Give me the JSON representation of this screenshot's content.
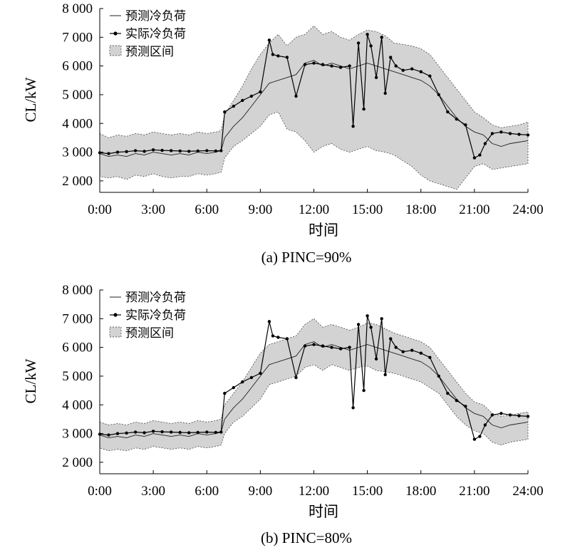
{
  "chart_data": [
    {
      "type": "line",
      "title": "(a) PINC=90%",
      "xlabel": "时间",
      "ylabel": "CL/kW",
      "x_ticks": [
        "0:00",
        "3:00",
        "6:00",
        "9:00",
        "12:00",
        "15:00",
        "18:00",
        "21:00",
        "24:00"
      ],
      "y_ticks": [
        "2 000",
        "3 000",
        "4 000",
        "5 000",
        "6 000",
        "7 000",
        "8 000"
      ],
      "xlim": [
        0,
        24
      ],
      "ylim": [
        1600,
        8000
      ],
      "grid": false,
      "legend_position": "top-left",
      "legend": [
        "预测冷负荷",
        "实际冷负荷",
        "预测区间"
      ],
      "series": [
        {
          "name": "预测冷负荷",
          "x": [
            0,
            0.5,
            1,
            1.5,
            2,
            2.5,
            3,
            3.5,
            4,
            4.5,
            5,
            5.5,
            6,
            6.5,
            6.8,
            7,
            7.5,
            8,
            8.5,
            9,
            9.5,
            10,
            10.5,
            11,
            11.5,
            12,
            12.5,
            13,
            13.5,
            14,
            14.5,
            15,
            15.5,
            16,
            16.5,
            17,
            17.5,
            18,
            18.5,
            19,
            19.5,
            20,
            20.5,
            21,
            21.5,
            22,
            22.5,
            23,
            23.5,
            24
          ],
          "y": [
            2950,
            2850,
            2900,
            2850,
            2950,
            2900,
            3000,
            2950,
            2900,
            2950,
            2900,
            3000,
            2950,
            3000,
            3050,
            3500,
            3900,
            4200,
            4600,
            5000,
            5400,
            5500,
            5600,
            5700,
            6100,
            6200,
            6000,
            6100,
            6000,
            5900,
            6000,
            6100,
            6000,
            5900,
            5800,
            5700,
            5600,
            5500,
            5300,
            5000,
            4600,
            4200,
            3900,
            3700,
            3600,
            3300,
            3200,
            3300,
            3350,
            3400
          ]
        },
        {
          "name": "实际冷负荷",
          "x": [
            0,
            0.5,
            1,
            1.5,
            2,
            2.5,
            3,
            3.5,
            4,
            4.5,
            5,
            5.5,
            6,
            6.5,
            6.8,
            7,
            7.5,
            8,
            8.5,
            9,
            9.5,
            9.7,
            10,
            10.5,
            11,
            11.5,
            12,
            12.5,
            13,
            13.5,
            14,
            14.2,
            14.5,
            14.8,
            15,
            15.2,
            15.5,
            15.8,
            16,
            16.3,
            16.6,
            17,
            17.5,
            18,
            18.5,
            19,
            19.5,
            20,
            20.5,
            21,
            21.3,
            21.6,
            22,
            22.5,
            23,
            23.5,
            24
          ],
          "y": [
            2980,
            2950,
            3000,
            3020,
            3050,
            3030,
            3080,
            3060,
            3050,
            3040,
            3030,
            3040,
            3050,
            3040,
            3050,
            4400,
            4600,
            4800,
            4950,
            5100,
            6900,
            6400,
            6350,
            6300,
            4950,
            6050,
            6100,
            6050,
            6000,
            5950,
            6000,
            3900,
            6800,
            4500,
            7100,
            6700,
            5600,
            7000,
            5050,
            6300,
            6000,
            5850,
            5900,
            5800,
            5650,
            5000,
            4400,
            4150,
            3950,
            2800,
            2900,
            3300,
            3650,
            3700,
            3650,
            3620,
            3600
          ]
        },
        {
          "name": "预测区间",
          "x": [
            0,
            0.5,
            1,
            1.5,
            2,
            2.5,
            3,
            3.5,
            4,
            4.5,
            5,
            5.5,
            6,
            6.5,
            6.8,
            7,
            7.5,
            8,
            8.5,
            9,
            9.5,
            10,
            10.5,
            11,
            11.5,
            12,
            12.5,
            13,
            13.5,
            14,
            14.5,
            15,
            15.5,
            16,
            16.5,
            17,
            17.5,
            18,
            18.5,
            19,
            19.5,
            20,
            20.5,
            21,
            21.5,
            22,
            22.5,
            23,
            23.5,
            24
          ],
          "upper": [
            3650,
            3500,
            3600,
            3550,
            3650,
            3600,
            3700,
            3650,
            3600,
            3650,
            3600,
            3700,
            3650,
            3700,
            3750,
            4300,
            4800,
            5300,
            5900,
            6400,
            6800,
            7100,
            6700,
            7000,
            7100,
            7400,
            7100,
            7200,
            7000,
            6900,
            7100,
            7250,
            7200,
            7050,
            6800,
            6750,
            6700,
            6600,
            6400,
            6000,
            5600,
            5200,
            4800,
            4400,
            4200,
            3950,
            3850,
            3900,
            3950,
            4050
          ],
          "lower": [
            2150,
            2100,
            2150,
            2050,
            2200,
            2150,
            2250,
            2150,
            2100,
            2150,
            2150,
            2250,
            2200,
            2250,
            2300,
            2800,
            3200,
            3400,
            3650,
            3900,
            4300,
            4400,
            3800,
            3700,
            3400,
            3000,
            3200,
            3300,
            3100,
            3000,
            3100,
            3200,
            3050,
            3000,
            2900,
            2700,
            2500,
            2200,
            2000,
            1900,
            1800,
            1700,
            2100,
            2500,
            2600,
            2400,
            2450,
            2500,
            2550,
            2600
          ]
        }
      ]
    },
    {
      "type": "line",
      "title": "(b) PINC=80%",
      "xlabel": "时间",
      "ylabel": "CL/kW",
      "x_ticks": [
        "0:00",
        "3:00",
        "6:00",
        "9:00",
        "12:00",
        "15:00",
        "18:00",
        "21:00",
        "24:00"
      ],
      "y_ticks": [
        "2 000",
        "3 000",
        "4 000",
        "5 000",
        "6 000",
        "7 000",
        "8 000"
      ],
      "xlim": [
        0,
        24
      ],
      "ylim": [
        1600,
        8000
      ],
      "grid": false,
      "legend_position": "top-left",
      "legend": [
        "预测冷负荷",
        "实际冷负荷",
        "预测区间"
      ],
      "series": [
        {
          "name": "预测冷负荷",
          "x": [
            0,
            0.5,
            1,
            1.5,
            2,
            2.5,
            3,
            3.5,
            4,
            4.5,
            5,
            5.5,
            6,
            6.5,
            6.8,
            7,
            7.5,
            8,
            8.5,
            9,
            9.5,
            10,
            10.5,
            11,
            11.5,
            12,
            12.5,
            13,
            13.5,
            14,
            14.5,
            15,
            15.5,
            16,
            16.5,
            17,
            17.5,
            18,
            18.5,
            19,
            19.5,
            20,
            20.5,
            21,
            21.5,
            22,
            22.5,
            23,
            23.5,
            24
          ],
          "y": [
            2950,
            2850,
            2900,
            2850,
            2950,
            2900,
            3000,
            2950,
            2900,
            2950,
            2900,
            3000,
            2950,
            3000,
            3050,
            3500,
            3900,
            4200,
            4600,
            5000,
            5400,
            5500,
            5600,
            5700,
            6100,
            6200,
            6000,
            6100,
            6000,
            5900,
            6000,
            6100,
            6000,
            5900,
            5800,
            5700,
            5600,
            5500,
            5300,
            5000,
            4600,
            4200,
            3900,
            3700,
            3600,
            3300,
            3200,
            3300,
            3350,
            3400
          ]
        },
        {
          "name": "实际冷负荷",
          "x": [
            0,
            0.5,
            1,
            1.5,
            2,
            2.5,
            3,
            3.5,
            4,
            4.5,
            5,
            5.5,
            6,
            6.5,
            6.8,
            7,
            7.5,
            8,
            8.5,
            9,
            9.5,
            9.7,
            10,
            10.5,
            11,
            11.5,
            12,
            12.5,
            13,
            13.5,
            14,
            14.2,
            14.5,
            14.8,
            15,
            15.2,
            15.5,
            15.8,
            16,
            16.3,
            16.6,
            17,
            17.5,
            18,
            18.5,
            19,
            19.5,
            20,
            20.5,
            21,
            21.3,
            21.6,
            22,
            22.5,
            23,
            23.5,
            24
          ],
          "y": [
            2980,
            2950,
            3000,
            3020,
            3050,
            3030,
            3080,
            3060,
            3050,
            3040,
            3030,
            3040,
            3050,
            3040,
            3050,
            4400,
            4600,
            4800,
            4950,
            5100,
            6900,
            6400,
            6350,
            6300,
            4950,
            6050,
            6100,
            6050,
            6000,
            5950,
            6000,
            3900,
            6800,
            4500,
            7100,
            6700,
            5600,
            7000,
            5050,
            6300,
            6000,
            5850,
            5900,
            5800,
            5650,
            5000,
            4400,
            4150,
            3950,
            2800,
            2900,
            3300,
            3650,
            3700,
            3650,
            3620,
            3600
          ]
        },
        {
          "name": "预测区间",
          "x": [
            0,
            0.5,
            1,
            1.5,
            2,
            2.5,
            3,
            3.5,
            4,
            4.5,
            5,
            5.5,
            6,
            6.5,
            6.8,
            7,
            7.5,
            8,
            8.5,
            9,
            9.5,
            10,
            10.5,
            11,
            11.5,
            12,
            12.5,
            13,
            13.5,
            14,
            14.5,
            15,
            15.5,
            16,
            16.5,
            17,
            17.5,
            18,
            18.5,
            19,
            19.5,
            20,
            20.5,
            21,
            21.5,
            22,
            22.5,
            23,
            23.5,
            24
          ],
          "upper": [
            3400,
            3300,
            3350,
            3300,
            3400,
            3350,
            3450,
            3400,
            3350,
            3400,
            3350,
            3450,
            3400,
            3450,
            3500,
            4000,
            4400,
            4800,
            5300,
            5800,
            6100,
            6200,
            6300,
            6400,
            6800,
            7000,
            6700,
            6800,
            6700,
            6600,
            6700,
            6850,
            6800,
            6650,
            6500,
            6400,
            6300,
            6200,
            6000,
            5600,
            5200,
            4800,
            4400,
            4100,
            4000,
            3700,
            3600,
            3650,
            3700,
            3750
          ],
          "lower": [
            2500,
            2400,
            2450,
            2400,
            2500,
            2450,
            2550,
            2500,
            2450,
            2500,
            2450,
            2550,
            2500,
            2550,
            2600,
            3000,
            3400,
            3600,
            3900,
            4200,
            4700,
            4800,
            4900,
            5000,
            5300,
            5400,
            5200,
            5400,
            5300,
            5200,
            5300,
            5350,
            5200,
            5150,
            5100,
            5000,
            4900,
            4800,
            4600,
            4400,
            4000,
            3600,
            3300,
            3100,
            3000,
            2700,
            2600,
            2700,
            2750,
            2800
          ]
        }
      ]
    }
  ]
}
